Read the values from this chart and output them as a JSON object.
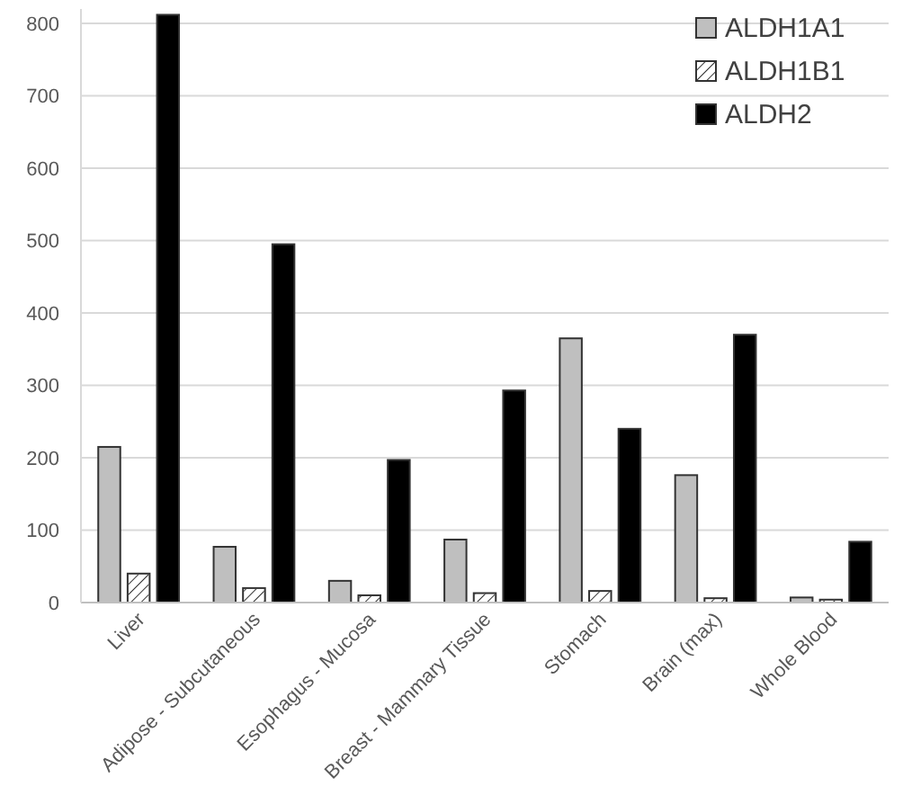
{
  "chart_data": {
    "type": "bar",
    "categories": [
      "Liver",
      "Adipose - Subcutaneous",
      "Esophagus - Mucosa",
      "Breast - Mammary Tissue",
      "Stomach",
      "Brain (max)",
      "Whole Blood"
    ],
    "series": [
      {
        "name": "ALDH1A1",
        "color": "#bfbfbf",
        "values": [
          215,
          77,
          30,
          87,
          365,
          176,
          7
        ]
      },
      {
        "name": "ALDH1B1",
        "color": "#ffffff",
        "values": [
          40,
          20,
          10,
          13,
          16,
          6,
          4
        ]
      },
      {
        "name": "ALDH2",
        "color": "#000000",
        "values": [
          812,
          495,
          197,
          293,
          240,
          370,
          84
        ]
      }
    ],
    "ylim": [
      0,
      820
    ],
    "yticks": [
      0,
      100,
      200,
      300,
      400,
      500,
      600,
      700,
      800
    ],
    "grid": "y",
    "legend": "top right"
  }
}
